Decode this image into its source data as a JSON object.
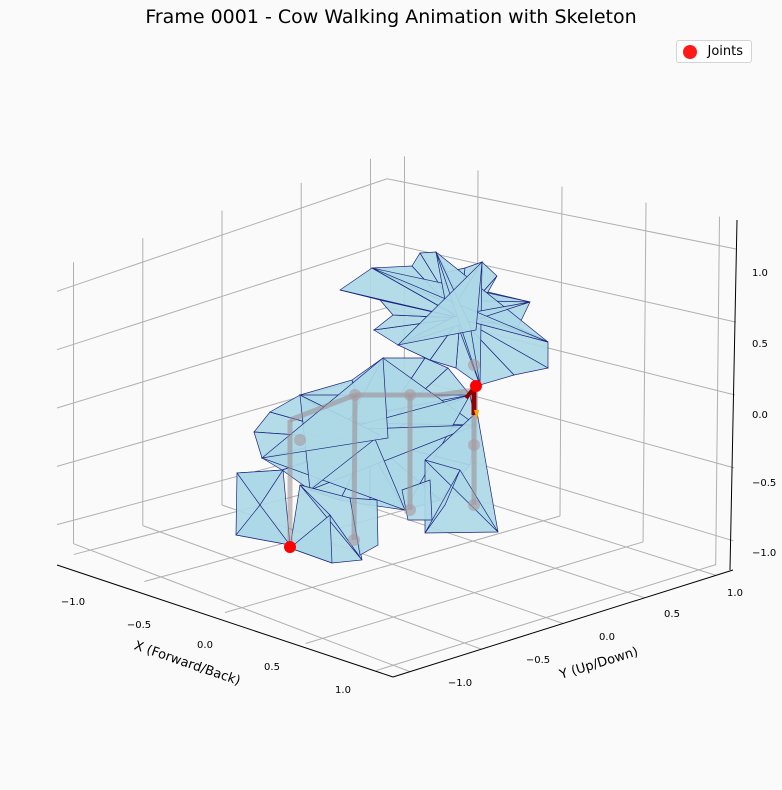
{
  "chart_data": {
    "type": "3d-mesh",
    "title": "Frame 0001 - Cow Walking Animation with Skeleton",
    "xlabel": "X (Forward/Back)",
    "ylabel": "Y (Up/Down)",
    "zlabel": "",
    "x_ticks": [
      "−1.0",
      "−0.5",
      "0.0",
      "0.5",
      "1.0"
    ],
    "y_ticks": [
      "−1.0",
      "−0.5",
      "0.0",
      "0.5",
      "1.0"
    ],
    "z_ticks": [
      "−1.0",
      "−0.5",
      "0.0",
      "0.5",
      "1.0"
    ],
    "xlim": [
      -1.2,
      1.2
    ],
    "ylim": [
      -1.2,
      1.2
    ],
    "zlim": [
      -1.2,
      1.2
    ],
    "grid": true,
    "legend": {
      "position": "top-right",
      "entries": [
        {
          "label": "Joints",
          "color": "#ff0000"
        }
      ]
    },
    "mesh": {
      "face_color": "#add8e6",
      "edge_color": "#1a237e"
    },
    "skeleton": {
      "bone_color": "#8b0000",
      "joint_color": "#ff0000"
    }
  }
}
